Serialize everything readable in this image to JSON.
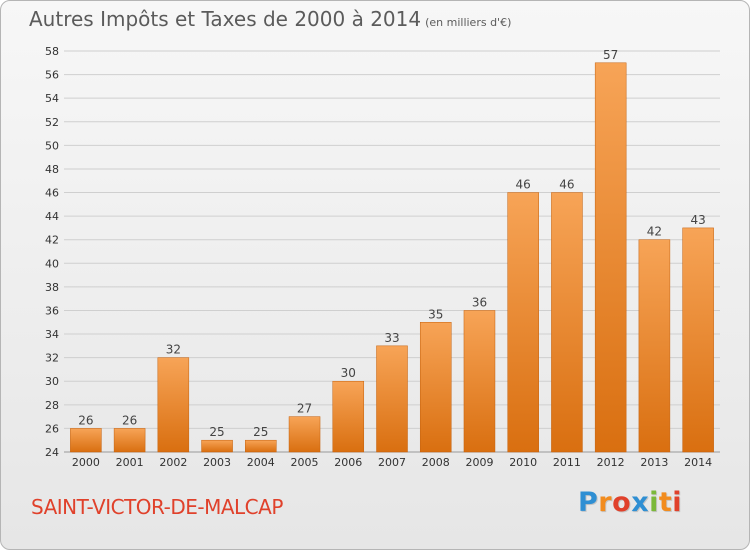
{
  "title": "Autres Impôts et Taxes de 2000 à 2014",
  "unit": "(en milliers d'€)",
  "commune": "SAINT-VICTOR-DE-MALCAP",
  "logo": {
    "letters": [
      "P",
      "r",
      "o",
      "x",
      "i",
      "t",
      "i"
    ],
    "colors": [
      "#2f8fd3",
      "#f28c1e",
      "#e0412b",
      "#2f8fd3",
      "#7bb83a",
      "#f28c1e",
      "#e0412b"
    ]
  },
  "colors": {
    "bar_top": "#f7a457",
    "bar_bottom": "#d96f10",
    "grid": "#cfcfcf",
    "axis_text": "#333333",
    "label_text": "#444444"
  },
  "chart_data": {
    "type": "bar",
    "categories": [
      "2000",
      "2001",
      "2002",
      "2003",
      "2004",
      "2005",
      "2006",
      "2007",
      "2008",
      "2009",
      "2010",
      "2011",
      "2012",
      "2013",
      "2014"
    ],
    "values": [
      26,
      26,
      32,
      25,
      25,
      27,
      30,
      33,
      35,
      36,
      46,
      46,
      57,
      42,
      43
    ],
    "ylim": [
      24,
      58
    ],
    "yticks": [
      24,
      26,
      28,
      30,
      32,
      34,
      36,
      38,
      40,
      42,
      44,
      46,
      48,
      50,
      52,
      54,
      56,
      58
    ],
    "xlabel": "",
    "ylabel": "",
    "grid": true
  }
}
